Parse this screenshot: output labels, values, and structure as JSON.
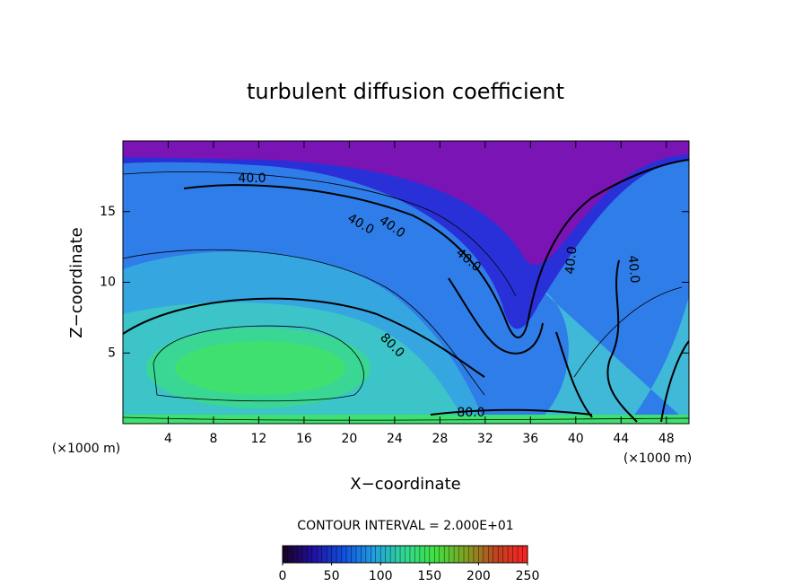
{
  "chart_data": {
    "type": "contour",
    "title": "turbulent diffusion coefficient",
    "xlabel": "X−coordinate",
    "ylabel": "Z−coordinate",
    "x_unit_labels": [
      "(×1000 m)",
      "(×1000 m)"
    ],
    "xlim": [
      0,
      50
    ],
    "xticks": [
      4,
      8,
      12,
      16,
      20,
      24,
      28,
      32,
      36,
      40,
      44,
      48
    ],
    "ylim": [
      0,
      20
    ],
    "yticks": [
      5,
      10,
      15
    ],
    "contour_labels": [
      {
        "value": 40,
        "label": "40.0"
      },
      {
        "value": 40,
        "label": "40.0"
      },
      {
        "value": 40,
        "label": "40.0"
      },
      {
        "value": 40,
        "label": "40.0"
      },
      {
        "value": 40,
        "label": "40.0"
      },
      {
        "value": 40,
        "label": "40.0"
      },
      {
        "value": 80,
        "label": "80.0"
      },
      {
        "value": 80,
        "label": "80.0"
      }
    ],
    "contour_interval_text": "CONTOUR INTERVAL = 2.000E+01",
    "colorbar": {
      "lim": [
        0,
        250
      ],
      "ticks": [
        0,
        50,
        100,
        150,
        200,
        250
      ],
      "colormap": [
        "#1a0020",
        "#2010a0",
        "#1050e0",
        "#20a0e0",
        "#30d890",
        "#40e040",
        "#80a020",
        "#c04020",
        "#ff2020"
      ]
    }
  }
}
